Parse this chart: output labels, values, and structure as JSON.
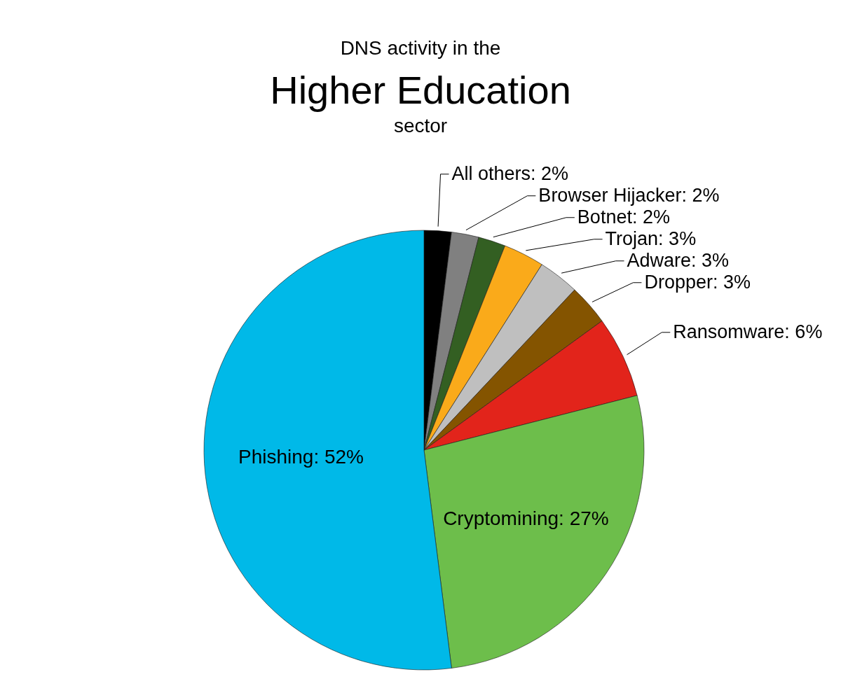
{
  "chart_data": {
    "type": "pie",
    "title": "Higher Education",
    "subtitle": "sector",
    "annotations": [
      "DNS activity in the"
    ],
    "categories": [
      "All others",
      "Browser Hijacker",
      "Botnet",
      "Trojan",
      "Adware",
      "Dropper",
      "Ransomware",
      "Cryptomining",
      "Phishing"
    ],
    "values": [
      2,
      2,
      2,
      3,
      3,
      3,
      6,
      27,
      52
    ],
    "colors": [
      "#000000",
      "#808080",
      "#335f22",
      "#faaa1a",
      "#bfbfbf",
      "#845400",
      "#e2241b",
      "#6dbe4b",
      "#00b9e8"
    ],
    "value_labels": [
      "2%",
      "2%",
      "2%",
      "3%",
      "3%",
      "3%",
      "6%",
      "27%",
      "52%"
    ]
  }
}
